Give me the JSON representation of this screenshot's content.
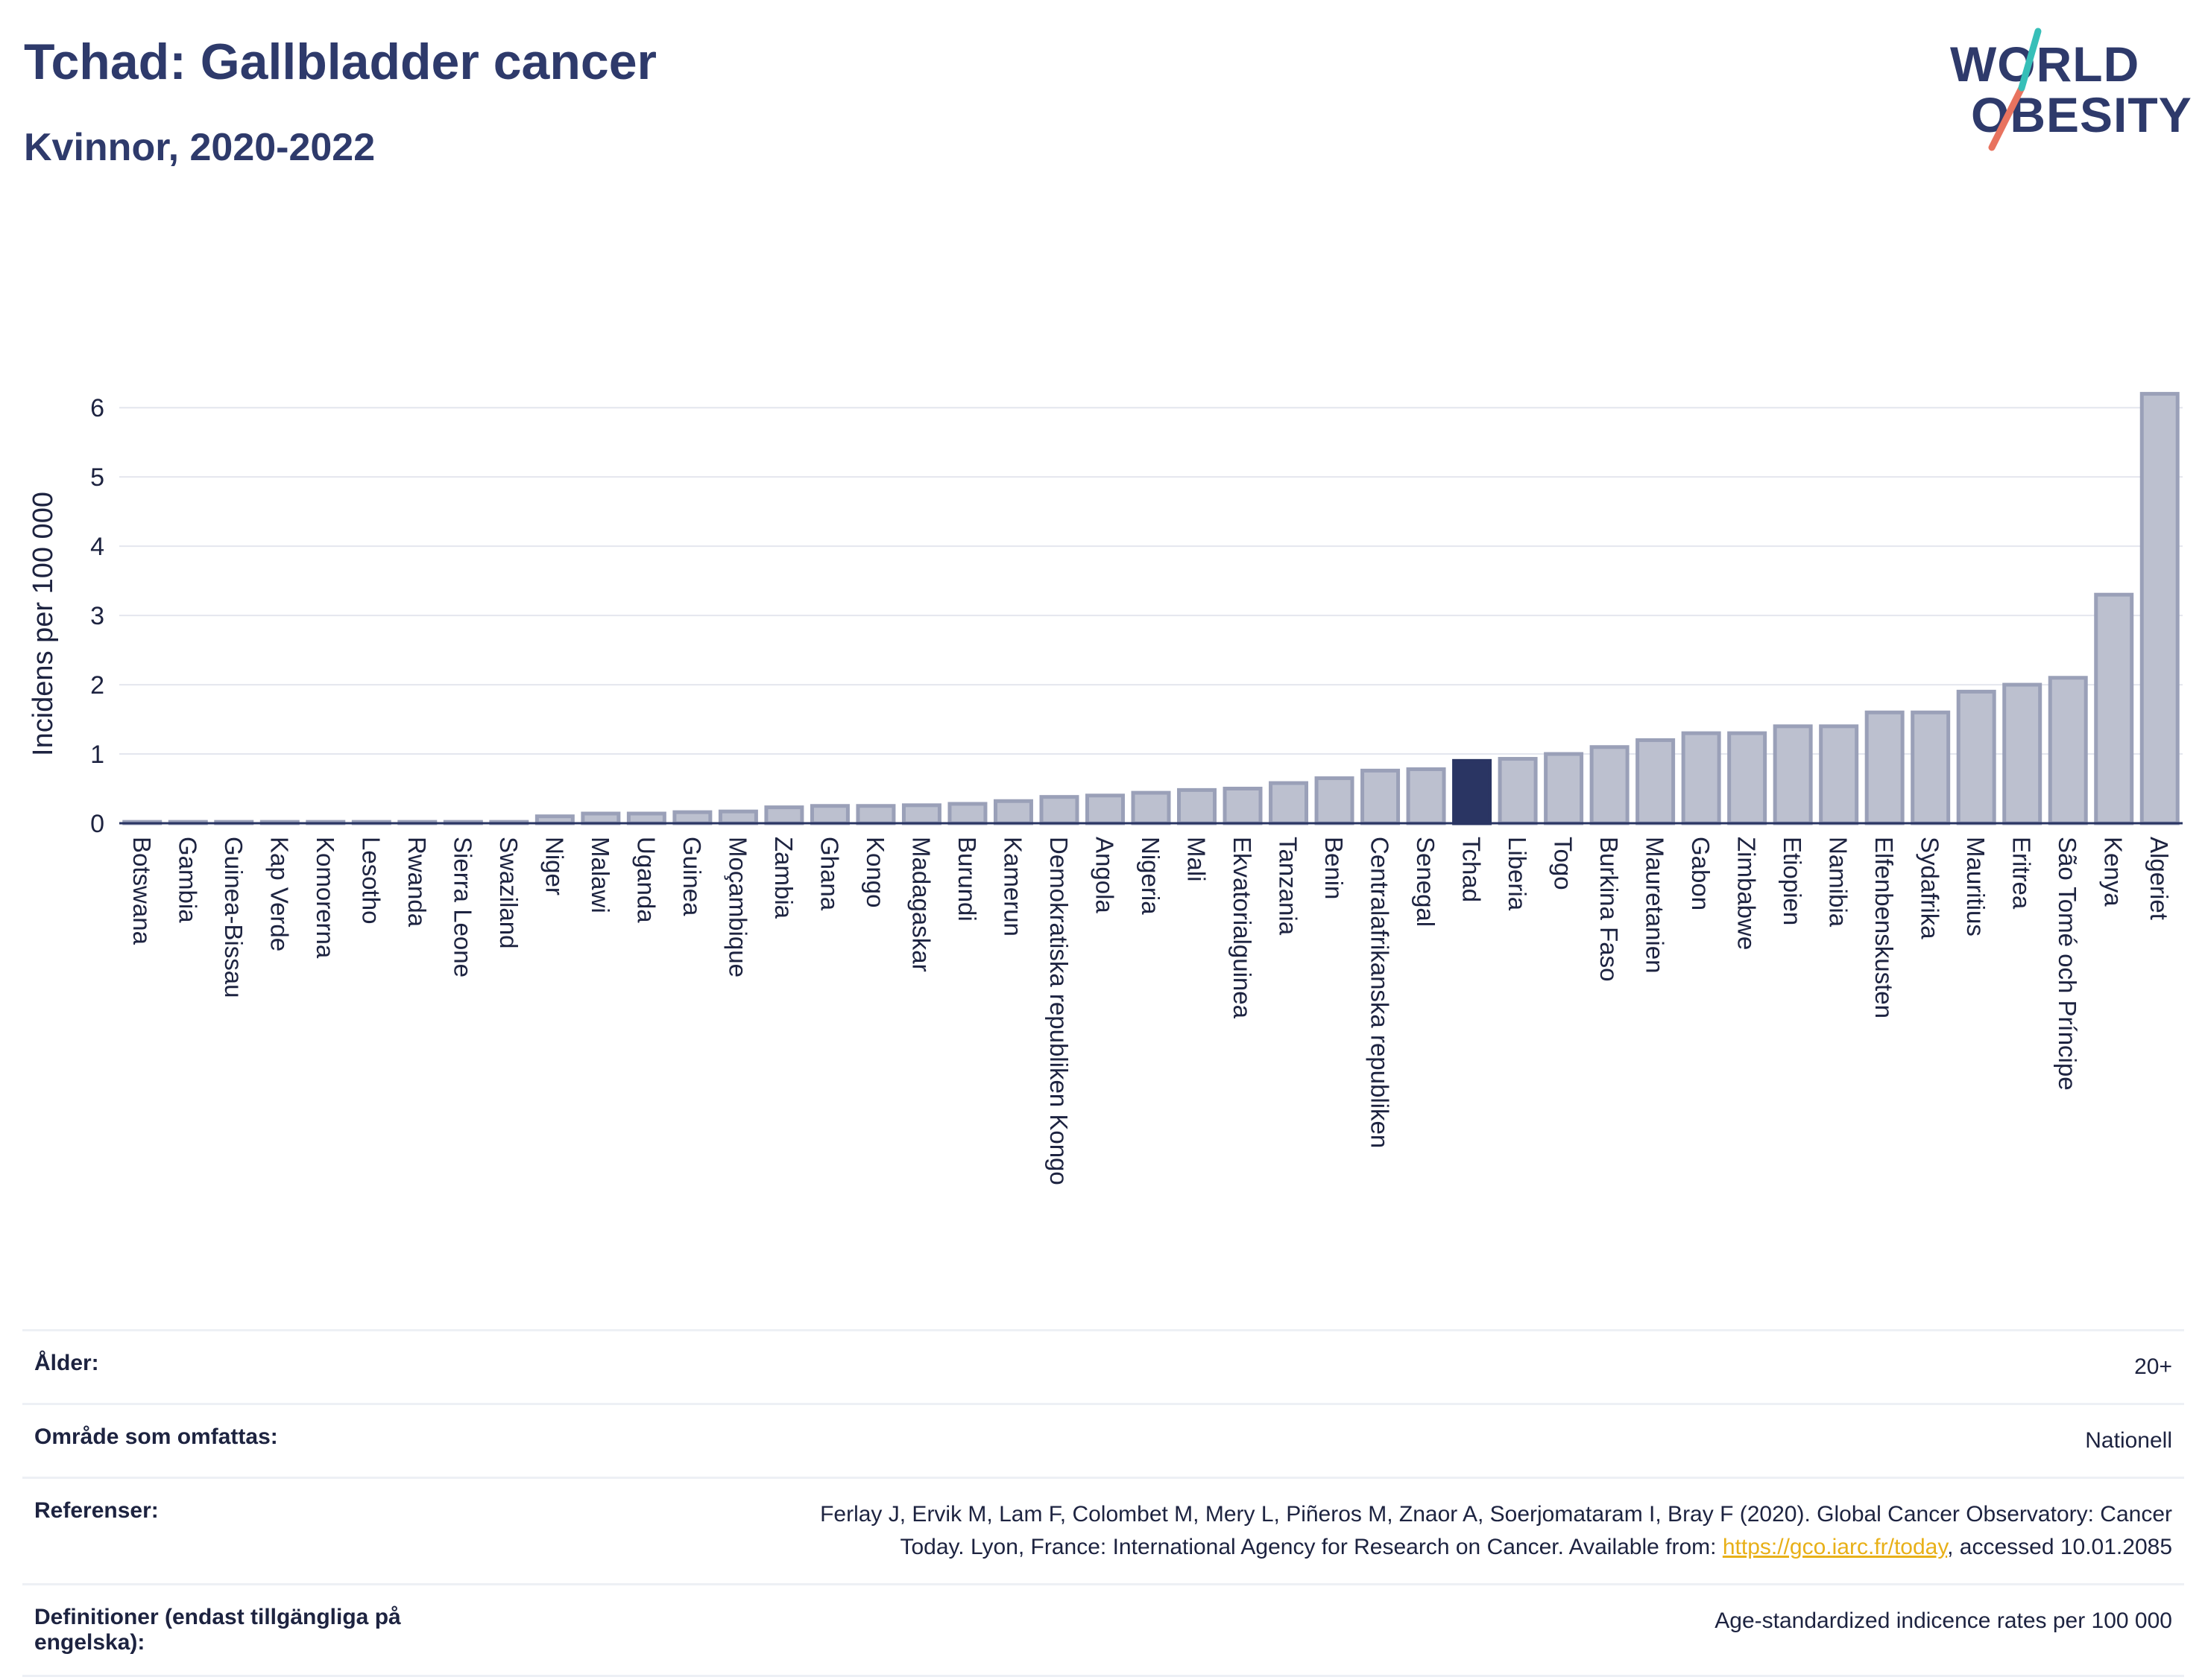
{
  "header": {
    "title": "Tchad: Gallbladder cancer",
    "subtitle": "Kvinnor, 2020-2022"
  },
  "logo": {
    "line1": "WORLD",
    "line2": "OBESITY"
  },
  "chart_data": {
    "type": "bar",
    "ylabel": "Incidens per 100 000",
    "xlabel": "",
    "ylim": [
      0,
      6.4
    ],
    "yticks": [
      0,
      1,
      2,
      3,
      4,
      5,
      6
    ],
    "grid": true,
    "highlight": "Tchad",
    "colors": {
      "bar": "#bcc0cf",
      "bar_edge": "#9aa0b8",
      "highlight": "#2a3563",
      "axis": "#2a3563",
      "grid": "#e4e6ee"
    },
    "categories": [
      "Botswana",
      "Gambia",
      "Guinea-Bissau",
      "Kap Verde",
      "Komorerna",
      "Lesotho",
      "Rwanda",
      "Sierra Leone",
      "Swaziland",
      "Niger",
      "Malawi",
      "Uganda",
      "Guinea",
      "Moçambique",
      "Zambia",
      "Ghana",
      "Kongo",
      "Madagaskar",
      "Burundi",
      "Kamerun",
      "Demokratiska republiken Kongo",
      "Angola",
      "Nigeria",
      "Mali",
      "Ekvatorialguinea",
      "Tanzania",
      "Benin",
      "Centralafrikanska republiken",
      "Senegal",
      "Tchad",
      "Liberia",
      "Togo",
      "Burkina Faso",
      "Mauretanien",
      "Gabon",
      "Zimbabwe",
      "Etiopien",
      "Namibia",
      "Elfenbenskusten",
      "Sydafrika",
      "Mauritius",
      "Eritrea",
      "São Tomé och Príncipe",
      "Kenya",
      "Algeriet"
    ],
    "values": [
      0.02,
      0.02,
      0.02,
      0.02,
      0.02,
      0.02,
      0.02,
      0.02,
      0.02,
      0.1,
      0.14,
      0.14,
      0.16,
      0.17,
      0.23,
      0.25,
      0.25,
      0.26,
      0.28,
      0.32,
      0.38,
      0.4,
      0.44,
      0.48,
      0.5,
      0.58,
      0.65,
      0.76,
      0.78,
      0.9,
      0.93,
      1.0,
      1.1,
      1.2,
      1.3,
      1.3,
      1.4,
      1.4,
      1.6,
      1.6,
      1.9,
      2.0,
      2.1,
      3.3,
      6.2
    ]
  },
  "info": [
    {
      "key": "Ålder:",
      "value": "20+"
    },
    {
      "key": "Område som omfattas:",
      "value": "Nationell"
    },
    {
      "key": "Referenser:",
      "value_line1": "Ferlay J, Ervik M, Lam F, Colombet M, Mery L, Piñeros M, Znaor A, Soerjomataram I, Bray F (2020). Global Cancer Observatory: Cancer",
      "value_line2_pre": "Today. Lyon, France: International Agency for Research on Cancer. Available from: ",
      "link": "https://gco.iarc.fr/today",
      "value_line2_post": ", accessed 10.01.2085"
    },
    {
      "key": "Definitioner (endast tillgängliga på engelska):",
      "value": "Age-standardized indicence rates per 100 000"
    }
  ]
}
